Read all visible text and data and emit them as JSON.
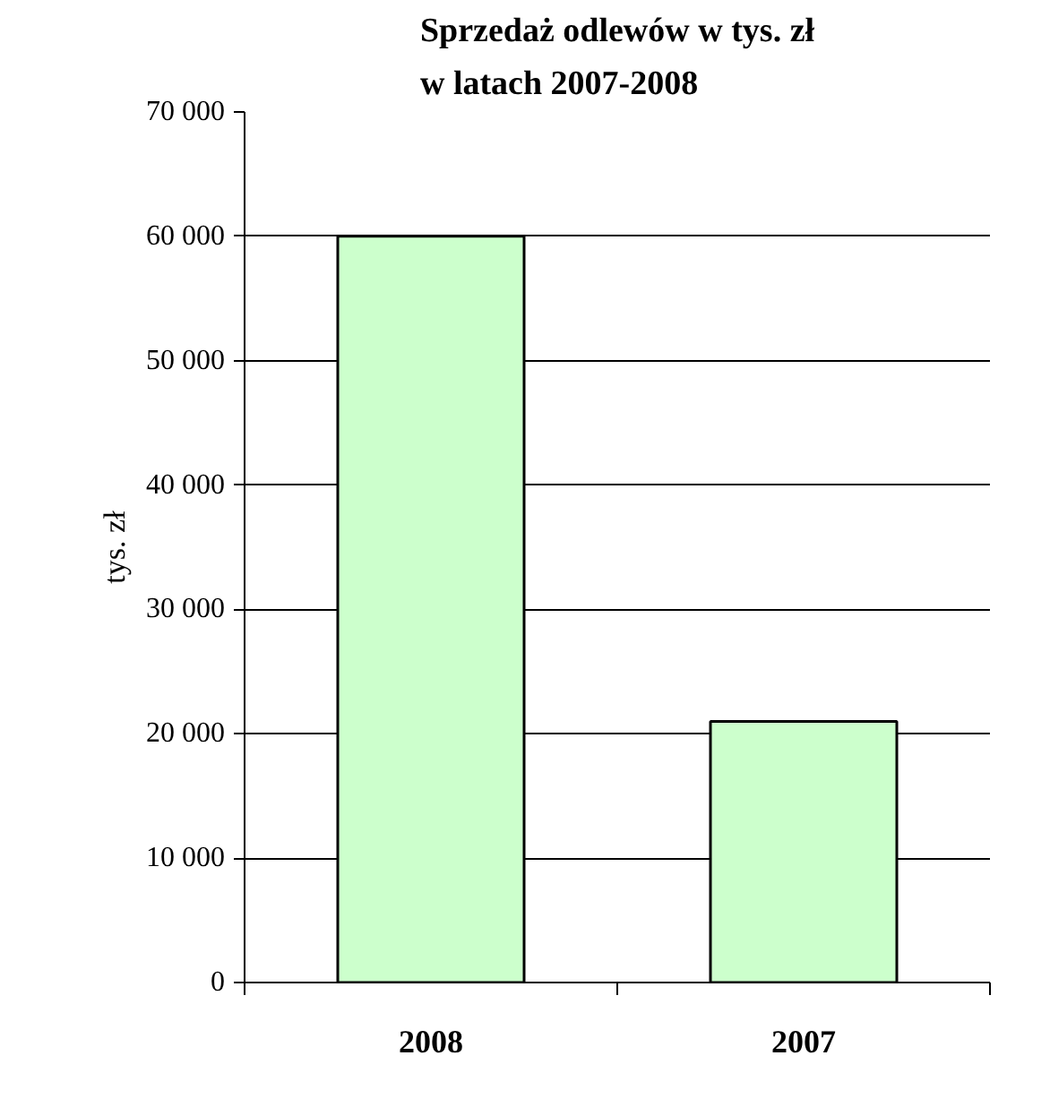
{
  "chart_data": {
    "type": "bar",
    "title": "Sprzedaż odlewów w tys. zł\nw latach 2007-2008",
    "ylabel": "tys. zł",
    "categories": [
      "2008",
      "2007"
    ],
    "values": [
      60000,
      21000
    ],
    "color": "#ccffcc",
    "ylim": [
      0,
      70000
    ],
    "yticks": [
      {
        "value": 0,
        "label": "0"
      },
      {
        "value": 10000,
        "label": "10 000"
      },
      {
        "value": 20000,
        "label": "20 000"
      },
      {
        "value": 30000,
        "label": "30 000"
      },
      {
        "value": 40000,
        "label": "40 000"
      },
      {
        "value": 50000,
        "label": "50 000"
      },
      {
        "value": 60000,
        "label": "60 000"
      },
      {
        "value": 70000,
        "label": "70 000"
      }
    ],
    "grid": "y"
  }
}
